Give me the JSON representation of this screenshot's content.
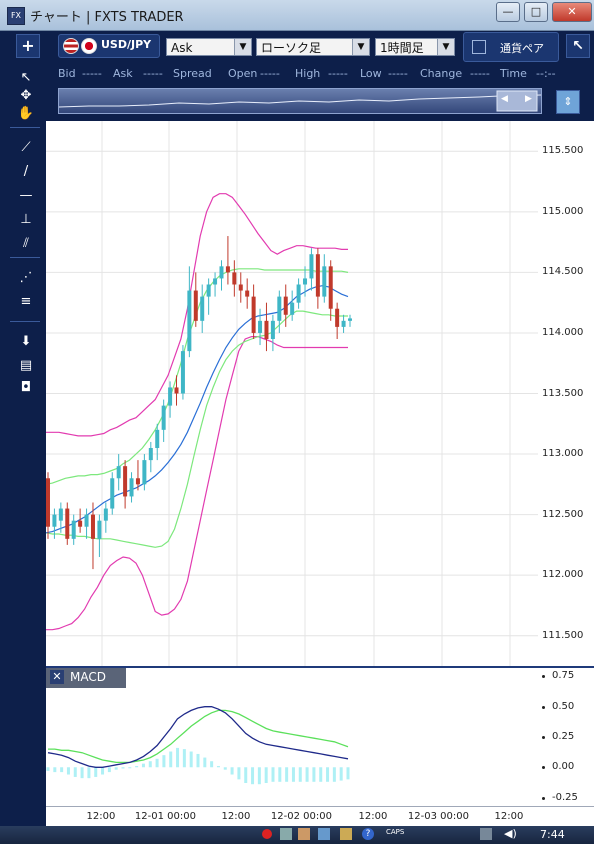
{
  "window": {
    "icon_label": "FX",
    "title": "チャート | FXTS TRADER",
    "minimize": "—",
    "maximize": "□",
    "close": "✕"
  },
  "toolbar": {
    "plus": "+",
    "symbol": "USD/JPY",
    "price_type": "Ask",
    "chart_type": "ローソク足",
    "timeframe": "1時間足",
    "currency_compare": "通貨ペア",
    "detach": "↖"
  },
  "quotebar": {
    "bid_label": "Bid",
    "bid_value": "-----",
    "ask_label": "Ask",
    "ask_value": "-----",
    "spread_label": "Spread",
    "open_label": "Open",
    "open_value": "-----",
    "high_label": "High",
    "high_value": "-----",
    "low_label": "Low",
    "low_value": "-----",
    "change_label": "Change",
    "change_value": "-----",
    "time_label": "Time",
    "time_value": "--:--"
  },
  "tools": [
    {
      "name": "cursor-tool",
      "glyph": "↖"
    },
    {
      "name": "crosshair-tool",
      "glyph": "✥"
    },
    {
      "name": "hand-tool",
      "glyph": "✋"
    },
    {
      "name": "trend-tool",
      "glyph": "⟋"
    },
    {
      "name": "line-tool",
      "glyph": "/"
    },
    {
      "name": "horizontal-line-tool",
      "glyph": "—"
    },
    {
      "name": "vertical-line-tool",
      "glyph": "⊥"
    },
    {
      "name": "channel-tool",
      "glyph": "⫽"
    },
    {
      "name": "fan-tool",
      "glyph": "⋰"
    },
    {
      "name": "fibonacci-tool",
      "glyph": "≡"
    },
    {
      "name": "download-tool",
      "glyph": "⬇"
    },
    {
      "name": "list-tool",
      "glyph": "▤"
    },
    {
      "name": "camera-tool",
      "glyph": "◘"
    }
  ],
  "chart_data": [
    {
      "type": "candlestick",
      "symbol": "USD/JPY",
      "indicators": [
        "Bollinger Bands",
        "Moving Average"
      ],
      "price_ticks": [
        "115.500",
        "115.000",
        "114.500",
        "114.000",
        "113.500",
        "113.000",
        "112.500",
        "112.000",
        "111.500"
      ],
      "ylim": [
        111.25,
        115.75
      ],
      "x_ticks": [
        "12:00",
        "12-01 00:00",
        "12:00",
        "12-02 00:00",
        "12:00",
        "12-03 00:00",
        "12:00"
      ],
      "grid": true,
      "candles": [
        [
          112.8,
          112.85,
          112.3,
          112.4
        ],
        [
          112.4,
          112.55,
          112.3,
          112.5
        ],
        [
          112.45,
          112.6,
          112.35,
          112.55
        ],
        [
          112.55,
          112.6,
          112.25,
          112.3
        ],
        [
          112.3,
          112.5,
          112.25,
          112.45
        ],
        [
          112.45,
          112.55,
          112.35,
          112.4
        ],
        [
          112.4,
          112.55,
          112.3,
          112.5
        ],
        [
          112.5,
          112.6,
          112.05,
          112.3
        ],
        [
          112.3,
          112.5,
          112.15,
          112.45
        ],
        [
          112.45,
          112.6,
          112.35,
          112.55
        ],
        [
          112.55,
          112.85,
          112.5,
          112.8
        ],
        [
          112.8,
          113.0,
          112.7,
          112.9
        ],
        [
          112.9,
          112.95,
          112.55,
          112.65
        ],
        [
          112.65,
          112.85,
          112.6,
          112.8
        ],
        [
          112.8,
          112.95,
          112.7,
          112.75
        ],
        [
          112.75,
          113.0,
          112.7,
          112.95
        ],
        [
          112.95,
          113.1,
          112.85,
          113.05
        ],
        [
          113.05,
          113.25,
          112.95,
          113.2
        ],
        [
          113.2,
          113.45,
          113.1,
          113.4
        ],
        [
          113.4,
          113.6,
          113.3,
          113.55
        ],
        [
          113.55,
          113.65,
          113.4,
          113.5
        ],
        [
          113.5,
          113.9,
          113.45,
          113.85
        ],
        [
          113.85,
          114.55,
          113.8,
          114.35
        ],
        [
          114.35,
          114.5,
          114.05,
          114.1
        ],
        [
          114.1,
          114.4,
          114.0,
          114.3
        ],
        [
          114.3,
          114.45,
          114.15,
          114.4
        ],
        [
          114.4,
          114.5,
          114.3,
          114.45
        ],
        [
          114.45,
          114.6,
          114.35,
          114.55
        ],
        [
          114.55,
          114.8,
          114.4,
          114.5
        ],
        [
          114.5,
          114.6,
          114.3,
          114.4
        ],
        [
          114.4,
          114.5,
          114.25,
          114.35
        ],
        [
          114.35,
          114.45,
          114.2,
          114.3
        ],
        [
          114.3,
          114.4,
          113.95,
          114.0
        ],
        [
          114.0,
          114.2,
          113.9,
          114.1
        ],
        [
          114.1,
          114.25,
          113.85,
          113.95
        ],
        [
          113.95,
          114.15,
          113.85,
          114.1
        ],
        [
          114.1,
          114.35,
          114.0,
          114.3
        ],
        [
          114.3,
          114.4,
          114.05,
          114.15
        ],
        [
          114.15,
          114.35,
          114.1,
          114.25
        ],
        [
          114.25,
          114.45,
          114.2,
          114.4
        ],
        [
          114.4,
          114.55,
          114.3,
          114.45
        ],
        [
          114.45,
          114.7,
          114.35,
          114.65
        ],
        [
          114.65,
          114.7,
          114.2,
          114.3
        ],
        [
          114.3,
          114.65,
          114.25,
          114.55
        ],
        [
          114.55,
          114.6,
          114.1,
          114.2
        ],
        [
          114.2,
          114.25,
          113.95,
          114.05
        ],
        [
          114.05,
          114.15,
          114.0,
          114.1
        ],
        [
          114.1,
          114.15,
          114.05,
          114.12
        ]
      ],
      "ma": [
        112.35,
        112.36,
        112.38,
        112.4,
        112.42,
        112.45,
        112.48,
        112.52,
        112.56,
        112.6,
        112.63,
        112.66,
        112.68,
        112.7,
        112.72,
        112.75,
        112.78,
        112.82,
        112.87,
        112.93,
        113.0,
        113.08,
        113.18,
        113.3,
        113.42,
        113.55,
        113.67,
        113.78,
        113.88,
        113.96,
        114.03,
        114.08,
        114.12,
        114.14,
        114.15,
        114.16,
        114.17,
        114.2,
        114.25,
        114.3,
        114.33,
        114.36,
        114.38,
        114.39,
        114.38,
        114.35,
        114.32,
        114.3
      ],
      "bb_upper": [
        113.18,
        113.18,
        113.18,
        113.17,
        113.16,
        113.15,
        113.15,
        113.15,
        113.16,
        113.17,
        113.2,
        113.22,
        113.25,
        113.28,
        113.3,
        113.35,
        113.4,
        113.45,
        113.55,
        113.65,
        113.8,
        113.95,
        114.2,
        114.5,
        114.8,
        115.0,
        115.12,
        115.15,
        115.15,
        115.12,
        115.05,
        114.98,
        114.9,
        114.82,
        114.75,
        114.68,
        114.65,
        114.68,
        114.7,
        114.72,
        114.72,
        114.71,
        114.7,
        114.7,
        114.7,
        114.7,
        114.69,
        114.69
      ],
      "bb_mid": [
        112.75,
        112.76,
        112.78,
        112.8,
        112.81,
        112.82,
        112.82,
        112.83,
        112.83,
        112.84,
        112.86,
        112.88,
        112.92,
        112.95,
        113.0,
        113.05,
        113.12,
        113.2,
        113.3,
        113.42,
        113.58,
        113.75,
        113.95,
        114.1,
        114.25,
        114.35,
        114.42,
        114.47,
        114.5,
        114.52,
        114.53,
        114.53,
        114.53,
        114.53,
        114.52,
        114.52,
        114.52,
        114.52,
        114.52,
        114.52,
        114.52,
        114.52,
        114.51,
        114.51,
        114.51,
        114.51,
        114.51,
        114.5
      ],
      "bb_lower": [
        112.35,
        112.34,
        112.34,
        112.33,
        112.33,
        112.32,
        112.32,
        112.31,
        112.3,
        112.3,
        112.3,
        112.29,
        112.28,
        112.27,
        112.26,
        112.25,
        112.24,
        112.23,
        112.24,
        112.28,
        112.38,
        112.55,
        112.75,
        112.98,
        113.2,
        113.4,
        113.55,
        113.68,
        113.78,
        113.85,
        113.9,
        113.93,
        113.95,
        113.97,
        113.98,
        114.0,
        114.05,
        114.1,
        114.15,
        114.18,
        114.18,
        114.17,
        114.16,
        114.15,
        114.15,
        114.14,
        114.14,
        114.14
      ],
      "bb_lower2": [
        111.55,
        111.55,
        111.56,
        111.58,
        111.6,
        111.65,
        111.72,
        111.82,
        111.9,
        112.0,
        112.08,
        112.12,
        112.15,
        112.14,
        112.1,
        112.0,
        111.85,
        111.7,
        111.67,
        111.68,
        111.72,
        111.8,
        111.95,
        112.2,
        112.45,
        112.7,
        112.95,
        113.2,
        113.45,
        113.65,
        113.85,
        113.95,
        113.97,
        113.97,
        113.95,
        113.93,
        113.9,
        113.88,
        113.88,
        113.88,
        113.88,
        113.88,
        113.88,
        113.88,
        113.88,
        113.88,
        113.88,
        113.88
      ]
    },
    {
      "type": "line",
      "title": "MACD",
      "y_ticks": [
        "0.75",
        "0.50",
        "0.25",
        "0.00",
        "-0.25"
      ],
      "ylim": [
        -0.32,
        0.82
      ],
      "macd": [
        0.12,
        0.11,
        0.1,
        0.08,
        0.05,
        0.03,
        0.01,
        0.0,
        0.0,
        0.01,
        0.02,
        0.03,
        0.04,
        0.06,
        0.09,
        0.13,
        0.18,
        0.25,
        0.32,
        0.4,
        0.44,
        0.47,
        0.49,
        0.5,
        0.5,
        0.48,
        0.45,
        0.4,
        0.34,
        0.28,
        0.24,
        0.21,
        0.19,
        0.18,
        0.17,
        0.16,
        0.15,
        0.14,
        0.13,
        0.12,
        0.11,
        0.1,
        0.09,
        0.08,
        0.07
      ],
      "signal": [
        0.15,
        0.15,
        0.14,
        0.14,
        0.13,
        0.12,
        0.1,
        0.08,
        0.06,
        0.05,
        0.04,
        0.04,
        0.04,
        0.05,
        0.06,
        0.08,
        0.11,
        0.15,
        0.19,
        0.24,
        0.29,
        0.34,
        0.38,
        0.42,
        0.45,
        0.47,
        0.47,
        0.46,
        0.44,
        0.41,
        0.38,
        0.35,
        0.32,
        0.3,
        0.29,
        0.28,
        0.27,
        0.26,
        0.25,
        0.24,
        0.23,
        0.22,
        0.21,
        0.19,
        0.17
      ],
      "histogram": [
        -0.03,
        -0.04,
        -0.04,
        -0.06,
        -0.08,
        -0.09,
        -0.09,
        -0.08,
        -0.06,
        -0.04,
        -0.02,
        -0.01,
        0.0,
        0.01,
        0.03,
        0.05,
        0.07,
        0.1,
        0.13,
        0.16,
        0.15,
        0.13,
        0.11,
        0.08,
        0.05,
        0.01,
        -0.02,
        -0.06,
        -0.1,
        -0.13,
        -0.14,
        -0.14,
        -0.13,
        -0.12,
        -0.12,
        -0.12,
        -0.12,
        -0.12,
        -0.12,
        -0.12,
        -0.12,
        -0.12,
        -0.12,
        -0.11,
        -0.1
      ]
    }
  ],
  "colors": {
    "candle_up": "#3fb6c6",
    "candle_down": "#c0392b",
    "ma": "#2a6fd6",
    "bb_band": "#7de87d",
    "bb_outer": "#e23bb0",
    "macd_line": "#1f2a8a",
    "signal_line": "#5be05b",
    "histogram": "#aef0f5"
  },
  "taskbar": {
    "caps": "CAPS",
    "time": "7:44"
  }
}
